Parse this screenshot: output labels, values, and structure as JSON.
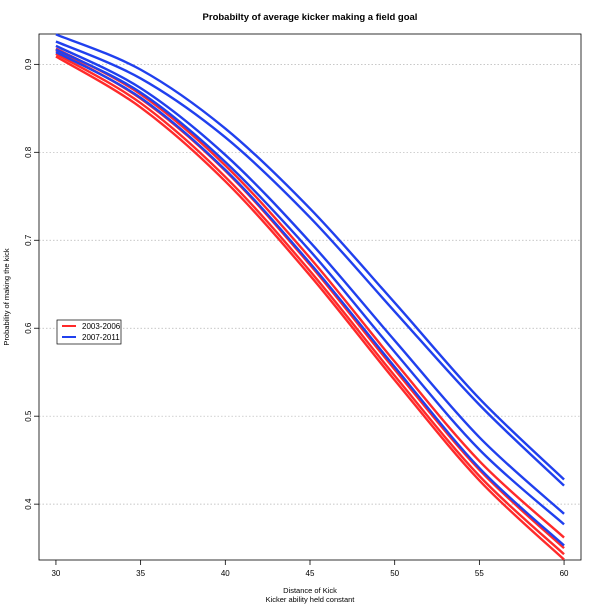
{
  "chart_data": {
    "type": "line",
    "title": "Probabilty of average kicker making a field goal",
    "xlabel": "Distance of Kick",
    "xlabel_sub": "Kicker ability held constant",
    "ylabel": "Probability of making the kick",
    "xlim": [
      29,
      61
    ],
    "ylim": [
      0.3365,
      0.9345
    ],
    "xticks": [
      30,
      35,
      40,
      45,
      50,
      55,
      60
    ],
    "yticks": [
      0.4,
      0.5,
      0.6,
      0.7,
      0.8,
      0.9
    ],
    "ytick_labels": [
      "0.4",
      "0.5",
      "0.6",
      "0.7",
      "0.8",
      "0.9"
    ],
    "grid": "horizontal dotted",
    "legend_position": "left-middle",
    "x": [
      30,
      35,
      40,
      45,
      50,
      55,
      60
    ],
    "series": [
      {
        "name": "2003-2006",
        "color": "#ff2a2a",
        "values": [
          0.909,
          0.851,
          0.767,
          0.66,
          0.541,
          0.427,
          0.337
        ]
      },
      {
        "name": "2003-2006",
        "color": "#ff2a2a",
        "values": [
          0.912,
          0.856,
          0.772,
          0.665,
          0.546,
          0.432,
          0.343
        ]
      },
      {
        "name": "2003-2006",
        "color": "#ff2a2a",
        "values": [
          0.916,
          0.861,
          0.779,
          0.672,
          0.553,
          0.439,
          0.35
        ]
      },
      {
        "name": "2003-2006",
        "color": "#ff2a2a",
        "values": [
          0.918,
          0.866,
          0.785,
          0.68,
          0.562,
          0.449,
          0.362
        ]
      },
      {
        "name": "2007-2011",
        "color": "#2040ee",
        "values": [
          0.914,
          0.862,
          0.78,
          0.674,
          0.556,
          0.441,
          0.353
        ]
      },
      {
        "name": "2007-2011",
        "color": "#2040ee",
        "values": [
          0.917,
          0.868,
          0.789,
          0.688,
          0.573,
          0.462,
          0.377
        ]
      },
      {
        "name": "2007-2011",
        "color": "#2040ee",
        "values": [
          0.921,
          0.873,
          0.797,
          0.698,
          0.586,
          0.476,
          0.389
        ]
      },
      {
        "name": "2007-2011",
        "color": "#2040ee",
        "values": [
          0.926,
          0.884,
          0.817,
          0.726,
          0.619,
          0.513,
          0.421
        ]
      },
      {
        "name": "2007-2011",
        "color": "#2040ee",
        "values": [
          0.934,
          0.894,
          0.827,
          0.736,
          0.629,
          0.52,
          0.428
        ]
      }
    ],
    "legend": [
      {
        "label": "2003-2006",
        "color": "#ff2a2a"
      },
      {
        "label": "2007-2011",
        "color": "#2040ee"
      }
    ]
  }
}
